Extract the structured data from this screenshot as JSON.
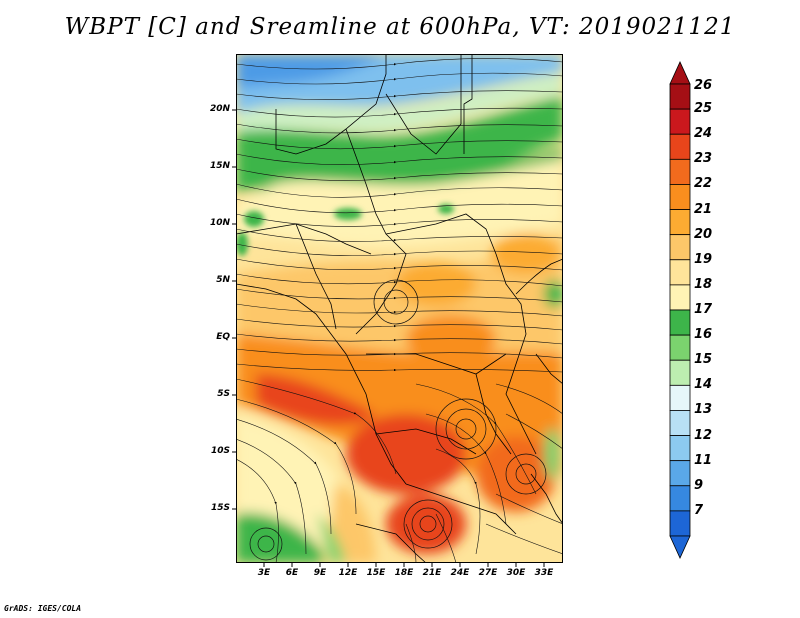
{
  "title": "WBPT [C] and Sreamline at 600hPa, VT: 2019021121",
  "credit": "GrADS: IGES/COLA",
  "map": {
    "lat_labels": [
      "20N",
      "15N",
      "10N",
      "5N",
      "EQ",
      "5S",
      "10S",
      "15S"
    ],
    "lon_labels": [
      "3E",
      "6E",
      "9E",
      "12E",
      "15E",
      "18E",
      "21E",
      "24E",
      "27E",
      "30E",
      "33E"
    ]
  },
  "colorbar": {
    "labels": [
      "26",
      "25",
      "24",
      "23",
      "22",
      "21",
      "20",
      "19",
      "18",
      "17",
      "16",
      "15",
      "14",
      "13",
      "12",
      "11",
      "9",
      "7"
    ],
    "colors": [
      "#a50f15",
      "#cb181d",
      "#e8451b",
      "#f26b1d",
      "#f98e1e",
      "#fcab32",
      "#fdc769",
      "#fee49a",
      "#fff3b5",
      "#3db54a",
      "#7bd36e",
      "#bdeeb0",
      "#e6f7f9",
      "#b8e0f5",
      "#8ccaf0",
      "#5aa8e8",
      "#3688e0",
      "#1d66d6"
    ]
  }
}
